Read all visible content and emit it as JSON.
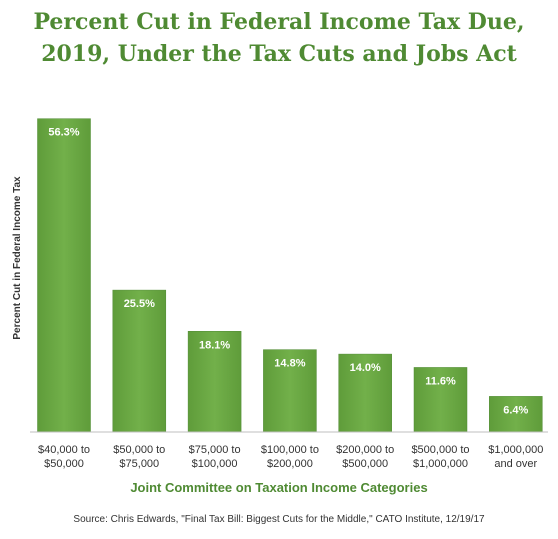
{
  "chart_data": {
    "type": "bar",
    "title": "Percent Cut in Federal Income Tax Due, 2019, Under the Tax Cuts and Jobs Act",
    "xlabel": "Joint Committee on Taxation Income Categories",
    "ylabel": "Percent Cut in Federal Income Tax",
    "categories": [
      "$40,000 to\n$50,000",
      "$50,000 to\n$75,000",
      "$75,000 to\n$100,000",
      "$100,000 to\n$200,000",
      "$200,000 to\n$500,000",
      "$500,000 to\n$1,000,000",
      "$1,000,000\nand over"
    ],
    "values": [
      56.3,
      25.5,
      18.1,
      14.8,
      14.0,
      11.6,
      6.4
    ],
    "data_labels": [
      "56.3%",
      "25.5%",
      "18.1%",
      "14.8%",
      "14.0%",
      "11.6%",
      "6.4%"
    ],
    "ylim": [
      0,
      57.5
    ],
    "grid": false,
    "legend": "none",
    "source": "Source: Chris Edwards, \"Final Tax Bill: Biggest Cuts for the Middle,\" CATO Institute, 12/19/17",
    "colors": {
      "bar": "#6aa943",
      "bar_dark": "#4f8a33",
      "title": "#4f8a33",
      "axis": "#bfbfbf"
    }
  }
}
